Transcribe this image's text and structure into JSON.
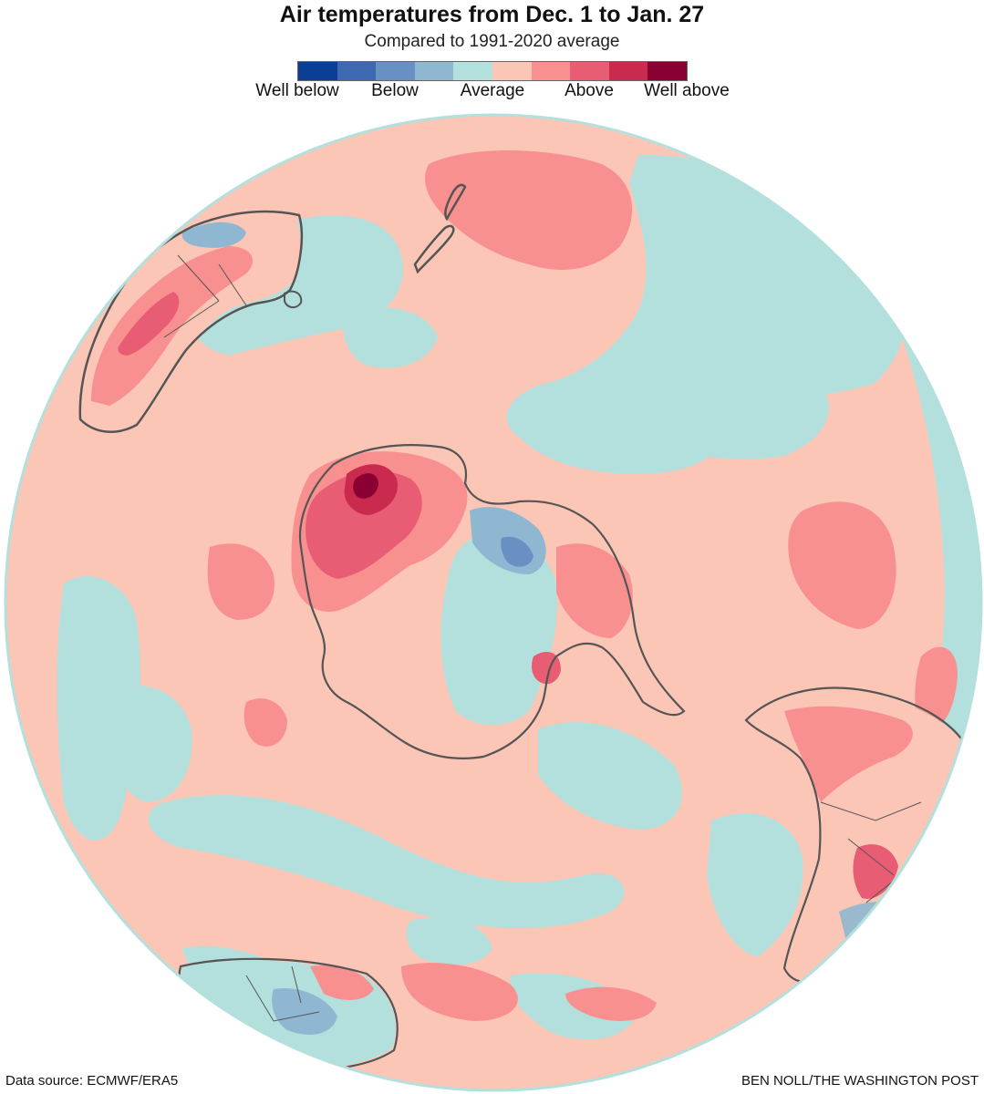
{
  "title": "Air temperatures from Dec. 1 to Jan. 27",
  "subtitle": "Compared to 1991-2020 average",
  "legend": {
    "colors": [
      "#0b3f97",
      "#3e68b0",
      "#6890c4",
      "#8fb7d1",
      "#b3e0dc",
      "#fcc6b7",
      "#f99090",
      "#e85d73",
      "#c92a4d",
      "#8a0033"
    ],
    "labels": [
      "Well below",
      "Below",
      "Average",
      "Above",
      "Well above"
    ]
  },
  "map": {
    "base_color": "#fcc6b7",
    "average_color": "#b3e0dc",
    "above_color": "#f99090",
    "well_above_color": "#c92a4d",
    "below_color": "#6890c4",
    "coastline_color": "#555555"
  },
  "footer": {
    "source": "Data source: ECMWF/ERA5",
    "credit": "BEN NOLL/THE WASHINGTON POST"
  }
}
